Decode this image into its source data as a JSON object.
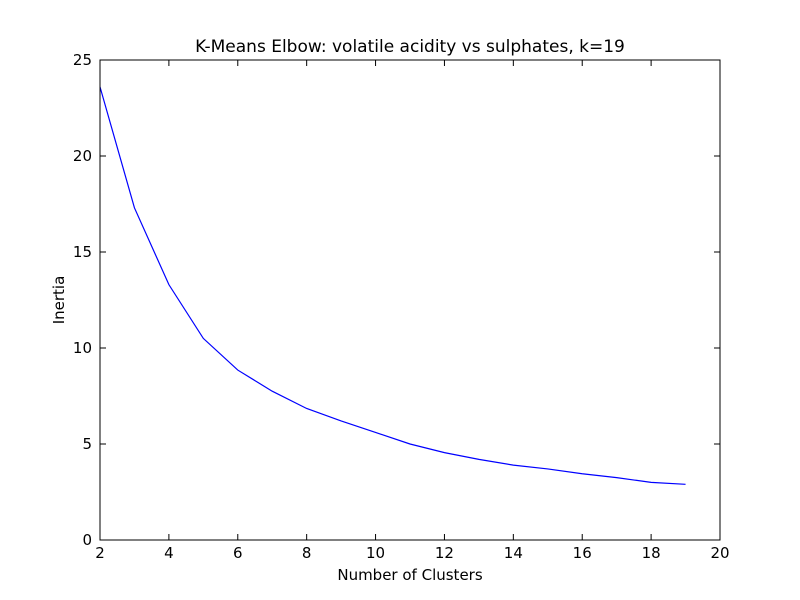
{
  "chart_data": {
    "type": "line",
    "title": "K-Means Elbow: volatile acidity vs sulphates, k=19",
    "xlabel": "Number of Clusters",
    "ylabel": "Inertia",
    "xlim": [
      2,
      20
    ],
    "ylim": [
      0,
      25
    ],
    "xticks": [
      2,
      4,
      6,
      8,
      10,
      12,
      14,
      16,
      18,
      20
    ],
    "yticks": [
      0,
      5,
      10,
      15,
      20,
      25
    ],
    "grid": false,
    "series": [
      {
        "color": "#0000ff",
        "x": [
          2,
          3,
          4,
          5,
          6,
          7,
          8,
          9,
          10,
          11,
          12,
          13,
          14,
          15,
          16,
          17,
          18,
          19
        ],
        "values": [
          23.6,
          17.3,
          13.3,
          10.5,
          8.85,
          7.75,
          6.85,
          6.2,
          5.6,
          5.0,
          4.55,
          4.2,
          3.9,
          3.7,
          3.45,
          3.25,
          3.0,
          2.9
        ]
      }
    ]
  }
}
